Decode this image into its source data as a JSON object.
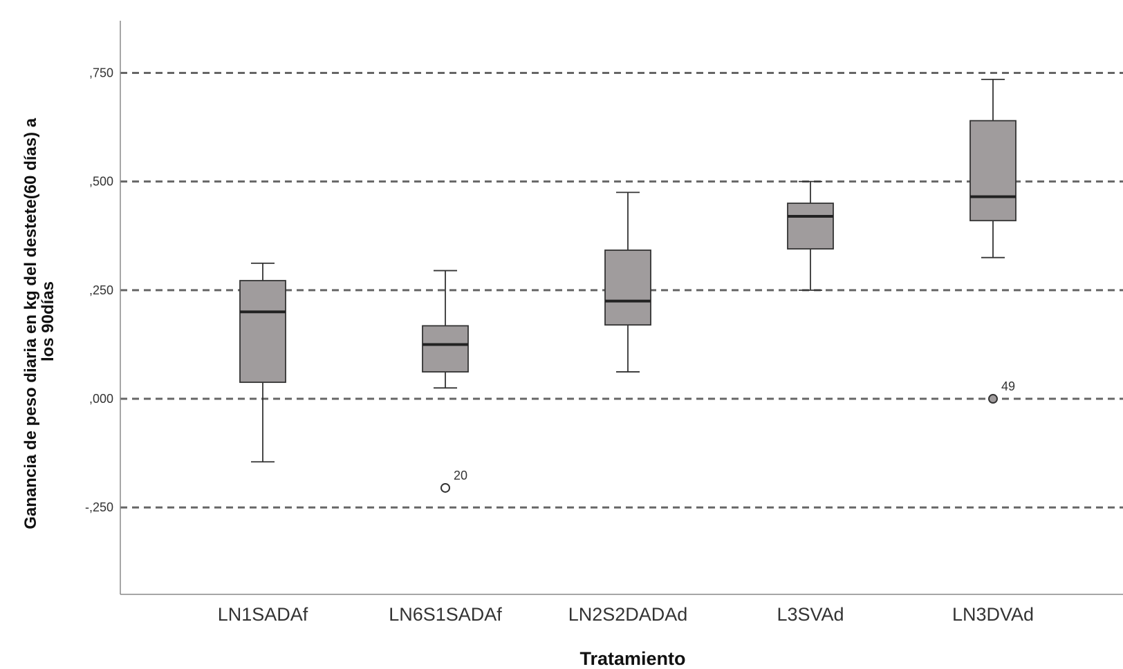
{
  "chart_data": {
    "type": "box",
    "xlabel": "Tratamiento",
    "ylabel_lines": [
      "Ganancia de peso diaria en kg del destete(60 días) a",
      "los 90días"
    ],
    "ylim": [
      -0.45,
      0.87
    ],
    "yticks": [
      -0.25,
      0,
      0.25,
      0.5,
      0.75
    ],
    "ytick_labels": [
      "-,250",
      ",000",
      ",250",
      ",500",
      ",750"
    ],
    "grid": "dashed-horizontal",
    "box_color": "#a09c9d",
    "categories": [
      "LN1SADAf",
      "LN6S1SADAf",
      "LN2S2DADAd",
      "L3SVAd",
      "LN3DVAd"
    ],
    "boxes": [
      {
        "whisker_low": -0.145,
        "q1": 0.038,
        "median": 0.2,
        "q3": 0.272,
        "whisker_high": 0.312
      },
      {
        "whisker_low": 0.025,
        "q1": 0.062,
        "median": 0.125,
        "q3": 0.168,
        "whisker_high": 0.295
      },
      {
        "whisker_low": 0.062,
        "q1": 0.17,
        "median": 0.225,
        "q3": 0.342,
        "whisker_high": 0.475
      },
      {
        "whisker_low": 0.25,
        "q1": 0.345,
        "median": 0.42,
        "q3": 0.45,
        "whisker_high": 0.5
      },
      {
        "whisker_low": 0.325,
        "q1": 0.41,
        "median": 0.465,
        "q3": 0.64,
        "whisker_high": 0.735
      }
    ],
    "outliers": [
      {
        "category": "LN6S1SADAf",
        "value": -0.205,
        "label": "20",
        "style": "hollow"
      },
      {
        "category": "LN3DVAd",
        "value": 0.0,
        "label": "49",
        "style": "filled"
      }
    ]
  }
}
